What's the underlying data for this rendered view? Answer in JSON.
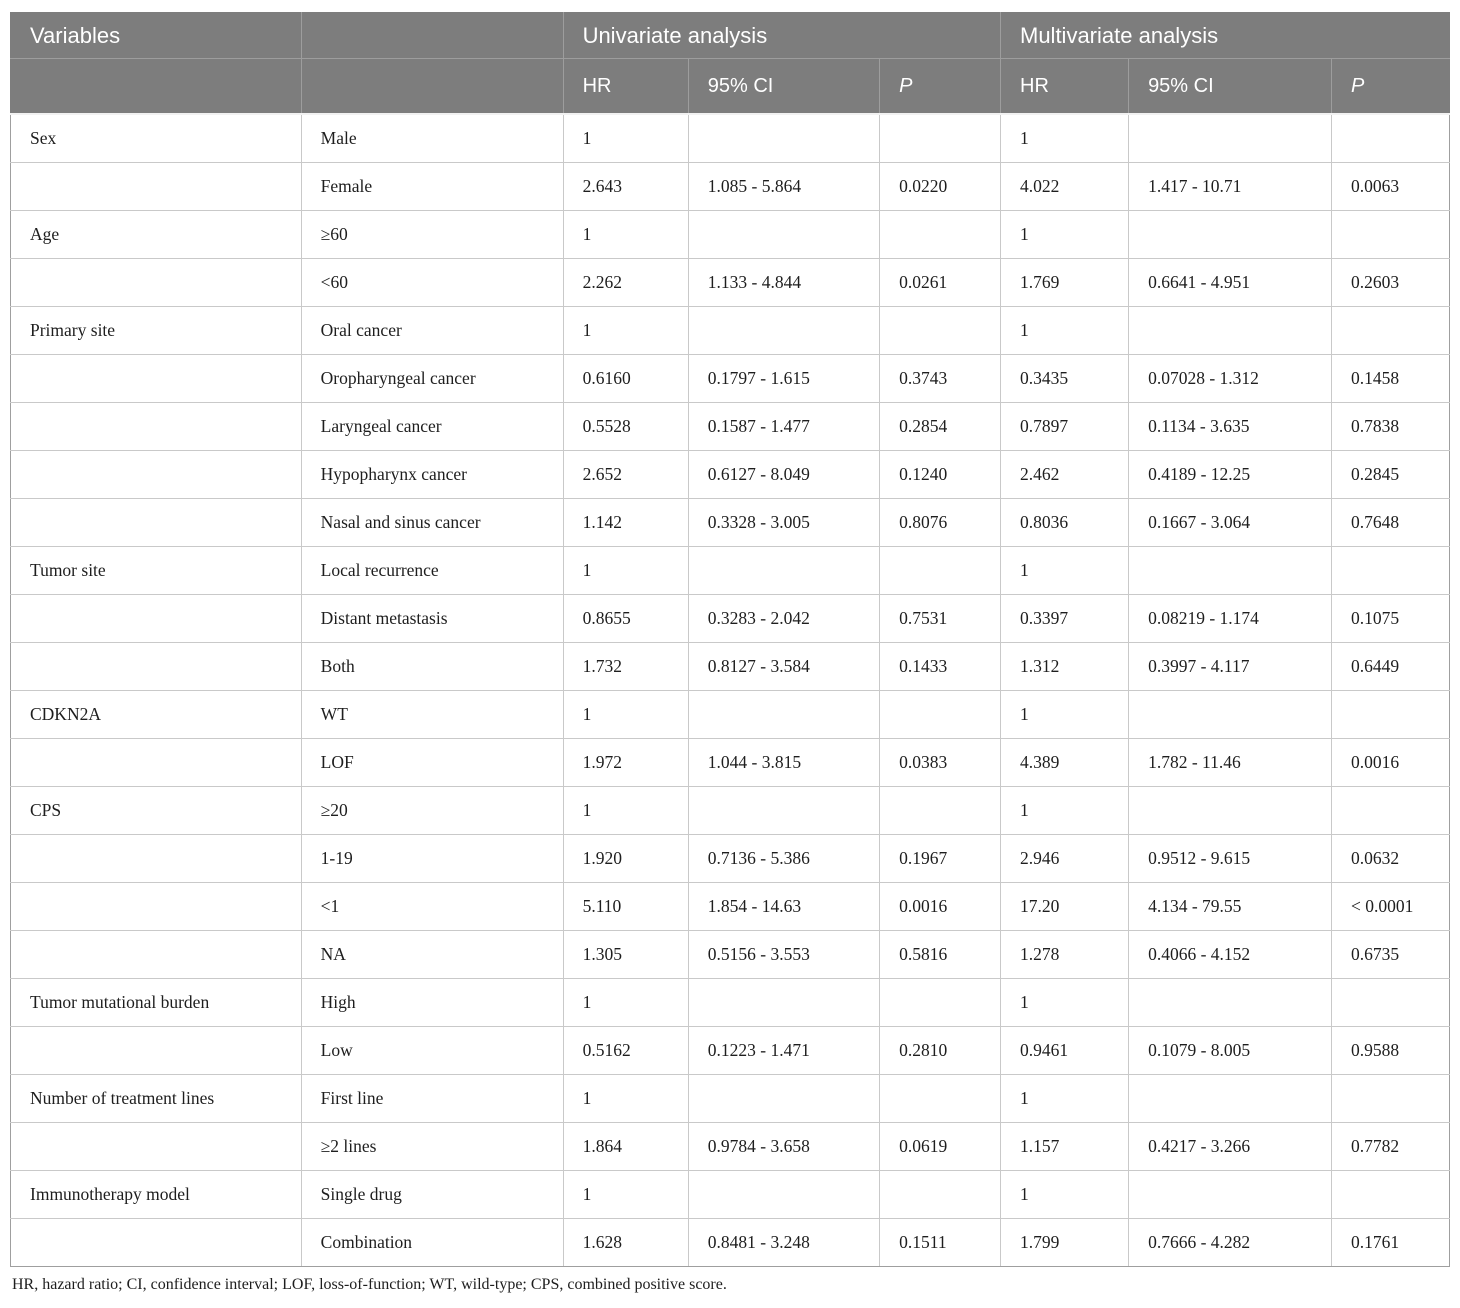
{
  "colors": {
    "header_bg": "#7d7d7d",
    "header_text": "#ffffff",
    "body_text": "#1e1e1e",
    "grid_line": "#c9c9c9",
    "outer_border": "#9f9f9f"
  },
  "table": {
    "header": {
      "variables_label": "Variables",
      "univariate_label": "Univariate analysis",
      "multivariate_label": "Multivariate analysis",
      "sub": [
        "HR",
        "95% CI",
        "P",
        "HR",
        "95% CI",
        "P"
      ]
    },
    "columns": [
      "variable",
      "category",
      "univariate_hr",
      "univariate_ci",
      "univariate_p",
      "multivariate_hr",
      "multivariate_ci",
      "multivariate_p"
    ],
    "rows": [
      [
        "Sex",
        "Male",
        "1",
        "",
        "",
        "1",
        "",
        ""
      ],
      [
        "",
        "Female",
        "2.643",
        "1.085 - 5.864",
        "0.0220",
        "4.022",
        "1.417 - 10.71",
        "0.0063"
      ],
      [
        "Age",
        "≥60",
        "1",
        "",
        "",
        "1",
        "",
        ""
      ],
      [
        "",
        "<60",
        "2.262",
        "1.133 - 4.844",
        "0.0261",
        "1.769",
        "0.6641 - 4.951",
        "0.2603"
      ],
      [
        "Primary site",
        "Oral cancer",
        "1",
        "",
        "",
        "1",
        "",
        ""
      ],
      [
        "",
        "Oropharyngeal cancer",
        "0.6160",
        "0.1797 - 1.615",
        "0.3743",
        "0.3435",
        "0.07028 - 1.312",
        "0.1458"
      ],
      [
        "",
        "Laryngeal cancer",
        "0.5528",
        "0.1587 - 1.477",
        "0.2854",
        "0.7897",
        "0.1134 - 3.635",
        "0.7838"
      ],
      [
        "",
        "Hypopharynx cancer",
        "2.652",
        "0.6127 - 8.049",
        "0.1240",
        "2.462",
        "0.4189 - 12.25",
        "0.2845"
      ],
      [
        "",
        "Nasal and sinus cancer",
        "1.142",
        "0.3328 - 3.005",
        "0.8076",
        "0.8036",
        "0.1667 - 3.064",
        "0.7648"
      ],
      [
        "Tumor site",
        "Local recurrence",
        "1",
        "",
        "",
        "1",
        "",
        ""
      ],
      [
        "",
        "Distant metastasis",
        "0.8655",
        "0.3283 - 2.042",
        "0.7531",
        "0.3397",
        "0.08219 - 1.174",
        "0.1075"
      ],
      [
        "",
        "Both",
        "1.732",
        "0.8127 - 3.584",
        "0.1433",
        "1.312",
        "0.3997 - 4.117",
        "0.6449"
      ],
      [
        "CDKN2A",
        "WT",
        "1",
        "",
        "",
        "1",
        "",
        ""
      ],
      [
        "",
        "LOF",
        "1.972",
        "1.044 - 3.815",
        "0.0383",
        "4.389",
        "1.782 - 11.46",
        "0.0016"
      ],
      [
        "CPS",
        "≥20",
        "1",
        "",
        "",
        "1",
        "",
        ""
      ],
      [
        "",
        "1-19",
        "1.920",
        "0.7136 - 5.386",
        "0.1967",
        "2.946",
        "0.9512 - 9.615",
        "0.0632"
      ],
      [
        "",
        "<1",
        "5.110",
        "1.854 - 14.63",
        "0.0016",
        "17.20",
        "4.134 - 79.55",
        "< 0.0001"
      ],
      [
        "",
        "NA",
        "1.305",
        "0.5156 - 3.553",
        "0.5816",
        "1.278",
        "0.4066 - 4.152",
        "0.6735"
      ],
      [
        "Tumor mutational burden",
        "High",
        "1",
        "",
        "",
        "1",
        "",
        ""
      ],
      [
        "",
        "Low",
        "0.5162",
        "0.1223 - 1.471",
        "0.2810",
        "0.9461",
        "0.1079 - 8.005",
        "0.9588"
      ],
      [
        "Number of treatment lines",
        "First line",
        "1",
        "",
        "",
        "1",
        "",
        ""
      ],
      [
        "",
        "≥2 lines",
        "1.864",
        "0.9784 - 3.658",
        "0.0619",
        "1.157",
        "0.4217 - 3.266",
        "0.7782"
      ],
      [
        "Immunotherapy model",
        "Single drug",
        "1",
        "",
        "",
        "1",
        "",
        ""
      ],
      [
        "",
        "Combination",
        "1.628",
        "0.8481 - 3.248",
        "0.1511",
        "1.799",
        "0.7666 - 4.282",
        "0.1761"
      ]
    ],
    "footnote": "HR, hazard ratio; CI, confidence interval; LOF, loss-of-function; WT, wild-type; CPS, combined positive score."
  }
}
